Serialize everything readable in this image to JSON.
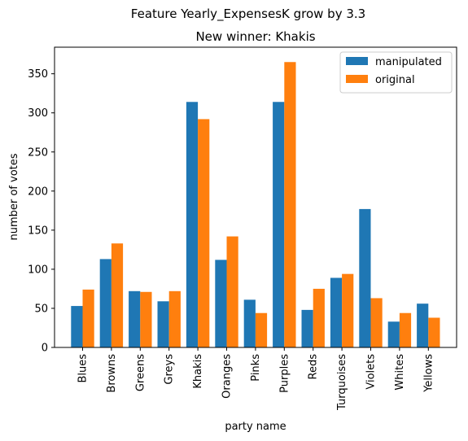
{
  "chart_data": {
    "type": "bar",
    "suptitle": "Feature Yearly_ExpensesK grow by 3.3",
    "title": "New winner: Khakis",
    "xlabel": "party name",
    "ylabel": "number of votes",
    "ylim": [
      0,
      384
    ],
    "yticks": [
      0,
      50,
      100,
      150,
      200,
      250,
      300,
      350
    ],
    "grid": false,
    "legend_position": "top-right",
    "categories": [
      "Blues",
      "Browns",
      "Greens",
      "Greys",
      "Khakis",
      "Oranges",
      "Pinks",
      "Purples",
      "Reds",
      "Turquoises",
      "Violets",
      "Whites",
      "Yellows"
    ],
    "series": [
      {
        "name": "manipulated",
        "color": "#1f77b4",
        "values": [
          53,
          113,
          72,
          59,
          314,
          112,
          61,
          314,
          48,
          89,
          177,
          33,
          56
        ]
      },
      {
        "name": "original",
        "color": "#ff7f0e",
        "values": [
          74,
          133,
          71,
          72,
          292,
          142,
          44,
          365,
          75,
          94,
          63,
          44,
          38
        ]
      }
    ]
  }
}
